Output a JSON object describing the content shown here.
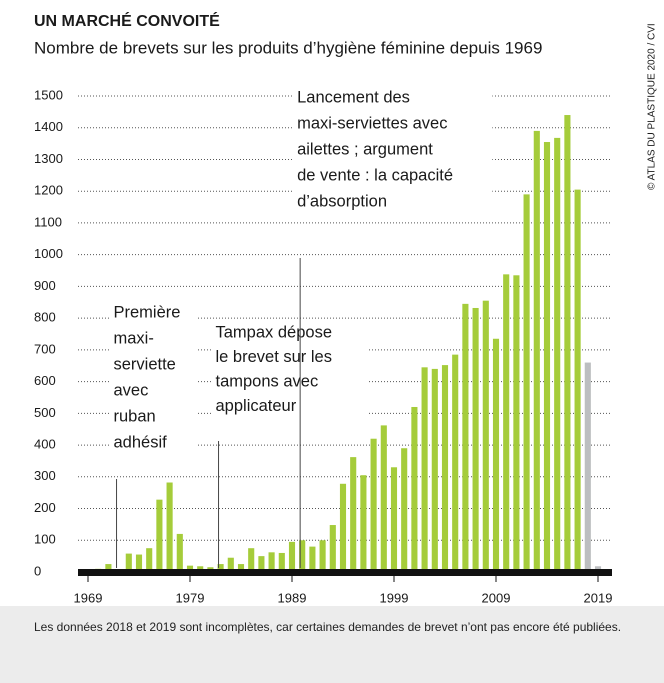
{
  "chart_data": {
    "type": "bar",
    "title": "UN MARCHÉ CONVOITÉ",
    "subtitle": "Nombre de brevets sur les produits d’hygiène féminine depuis 1969",
    "source": "© ATLAS DU PLASTIQUE 2020 / CVI",
    "note": "Les données 2018 et 2019 sont incomplètes, car certaines demandes de brevet n’ont pas encore été publiées.",
    "x": [
      1969,
      1970,
      1971,
      1972,
      1973,
      1974,
      1975,
      1976,
      1977,
      1978,
      1979,
      1980,
      1981,
      1982,
      1983,
      1984,
      1985,
      1986,
      1987,
      1988,
      1989,
      1990,
      1991,
      1992,
      1993,
      1994,
      1995,
      1996,
      1997,
      1998,
      1999,
      2000,
      2001,
      2002,
      2003,
      2004,
      2005,
      2006,
      2007,
      2008,
      2009,
      2010,
      2011,
      2012,
      2013,
      2014,
      2015,
      2016,
      2017,
      2018,
      2019
    ],
    "values": [
      5,
      10,
      25,
      5,
      58,
      55,
      75,
      228,
      282,
      120,
      20,
      18,
      15,
      25,
      45,
      25,
      75,
      50,
      62,
      60,
      95,
      100,
      80,
      100,
      148,
      278,
      362,
      305,
      420,
      462,
      330,
      390,
      520,
      645,
      640,
      652,
      685,
      845,
      832,
      855,
      735,
      938,
      935,
      1190,
      1390,
      1355,
      1368,
      1440,
      1205,
      660,
      18
    ],
    "colors": [
      "#a5cc3a",
      "#a5cc3a",
      "#a5cc3a",
      "#a5cc3a",
      "#a5cc3a",
      "#a5cc3a",
      "#a5cc3a",
      "#a5cc3a",
      "#a5cc3a",
      "#a5cc3a",
      "#a5cc3a",
      "#a5cc3a",
      "#a5cc3a",
      "#a5cc3a",
      "#a5cc3a",
      "#a5cc3a",
      "#a5cc3a",
      "#a5cc3a",
      "#a5cc3a",
      "#a5cc3a",
      "#a5cc3a",
      "#a5cc3a",
      "#a5cc3a",
      "#a5cc3a",
      "#a5cc3a",
      "#a5cc3a",
      "#a5cc3a",
      "#a5cc3a",
      "#a5cc3a",
      "#a5cc3a",
      "#a5cc3a",
      "#a5cc3a",
      "#a5cc3a",
      "#a5cc3a",
      "#a5cc3a",
      "#a5cc3a",
      "#a5cc3a",
      "#a5cc3a",
      "#a5cc3a",
      "#a5cc3a",
      "#a5cc3a",
      "#a5cc3a",
      "#a5cc3a",
      "#a5cc3a",
      "#a5cc3a",
      "#a5cc3a",
      "#a5cc3a",
      "#a5cc3a",
      "#a5cc3a",
      "#bcbec0",
      "#bcbec0"
    ],
    "xlim": [
      1969,
      2019
    ],
    "xticks": [
      1969,
      1979,
      1989,
      1999,
      2009,
      2019
    ],
    "ylim": [
      0,
      1500
    ],
    "yticks": [
      0,
      100,
      200,
      300,
      400,
      500,
      600,
      700,
      800,
      900,
      1000,
      1100,
      1200,
      1300,
      1400,
      1500
    ],
    "grid": true,
    "annotations": [
      {
        "x": 1972,
        "lines": [
          "Première",
          "maxi-",
          "serviette",
          "avec",
          "ruban",
          "adhésif"
        ]
      },
      {
        "x": 1982,
        "lines": [
          "Tampax dépose",
          "le brevet sur les",
          "tampons avec",
          "applicateur"
        ]
      },
      {
        "x": 1990,
        "lines": [
          "Lancement des",
          "maxi-serviettes avec",
          "ailettes ; argument",
          "de vente : la capacité",
          "d’absorption"
        ]
      }
    ]
  }
}
